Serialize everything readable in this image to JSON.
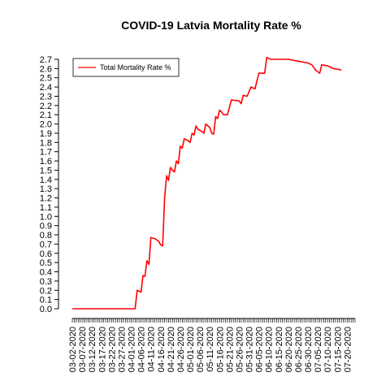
{
  "chart_data": {
    "type": "line",
    "title": "COVID-19 Latvia Mortality Rate %",
    "xlabel": "",
    "ylabel": "",
    "ylim": [
      0,
      2.7
    ],
    "yticks": [
      "0.0",
      "0.1",
      "0.2",
      "0.3",
      "0.4",
      "0.5",
      "0.6",
      "0.7",
      "0.8",
      "0.9",
      "1.0",
      "1.1",
      "1.2",
      "1.3",
      "1.4",
      "1.5",
      "1.6",
      "1.7",
      "1.8",
      "1.9",
      "2.0",
      "2.1",
      "2.2",
      "2.3",
      "2.4",
      "2.5",
      "2.6",
      "2.7"
    ],
    "xlim": [
      "03-02-2020",
      "07-24-2020"
    ],
    "xticks": [
      "03-02-2020",
      "03-07-2020",
      "03-12-2020",
      "03-17-2020",
      "03-22-2020",
      "03-27-2020",
      "04-01-2020",
      "04-06-2020",
      "04-11-2020",
      "04-16-2020",
      "04-21-2020",
      "04-26-2020",
      "05-01-2020",
      "05-06-2020",
      "05-11-2020",
      "05-16-2020",
      "05-21-2020",
      "05-26-2020",
      "05-31-2020",
      "06-05-2020",
      "06-10-2020",
      "06-15-2020",
      "06-20-2020",
      "06-25-2020",
      "06-30-2020",
      "07-05-2020",
      "07-10-2020",
      "07-15-2020",
      "07-20-2020"
    ],
    "legend": {
      "position": "top-left"
    },
    "grid": false,
    "series": [
      {
        "name": "Total Mortality Rate %",
        "color": "#ff0000",
        "points": [
          [
            "03-02-2020",
            0.0
          ],
          [
            "04-03-2020",
            0.0
          ],
          [
            "04-04-2020",
            0.2
          ],
          [
            "04-06-2020",
            0.18
          ],
          [
            "04-07-2020",
            0.36
          ],
          [
            "04-08-2020",
            0.35
          ],
          [
            "04-09-2020",
            0.52
          ],
          [
            "04-10-2020",
            0.48
          ],
          [
            "04-11-2020",
            0.77
          ],
          [
            "04-13-2020",
            0.76
          ],
          [
            "04-15-2020",
            0.73
          ],
          [
            "04-16-2020",
            0.69
          ],
          [
            "04-17-2020",
            0.68
          ],
          [
            "04-18-2020",
            1.2
          ],
          [
            "04-19-2020",
            1.44
          ],
          [
            "04-20-2020",
            1.39
          ],
          [
            "04-21-2020",
            1.53
          ],
          [
            "04-22-2020",
            1.5
          ],
          [
            "04-23-2020",
            1.48
          ],
          [
            "04-24-2020",
            1.6
          ],
          [
            "04-25-2020",
            1.57
          ],
          [
            "04-26-2020",
            1.76
          ],
          [
            "04-27-2020",
            1.74
          ],
          [
            "04-28-2020",
            1.84
          ],
          [
            "04-30-2020",
            1.82
          ],
          [
            "05-01-2020",
            1.8
          ],
          [
            "05-02-2020",
            1.9
          ],
          [
            "05-03-2020",
            1.88
          ],
          [
            "05-04-2020",
            1.98
          ],
          [
            "05-05-2020",
            1.94
          ],
          [
            "05-07-2020",
            1.92
          ],
          [
            "05-08-2020",
            1.9
          ],
          [
            "05-09-2020",
            2.0
          ],
          [
            "05-11-2020",
            1.96
          ],
          [
            "05-12-2020",
            1.9
          ],
          [
            "05-13-2020",
            1.89
          ],
          [
            "05-14-2020",
            2.08
          ],
          [
            "05-15-2020",
            2.06
          ],
          [
            "05-16-2020",
            2.15
          ],
          [
            "05-17-2020",
            2.13
          ],
          [
            "05-18-2020",
            2.1
          ],
          [
            "05-20-2020",
            2.1
          ],
          [
            "05-22-2020",
            2.26
          ],
          [
            "05-26-2020",
            2.25
          ],
          [
            "05-27-2020",
            2.22
          ],
          [
            "05-28-2020",
            2.31
          ],
          [
            "05-30-2020",
            2.3
          ],
          [
            "06-01-2020",
            2.4
          ],
          [
            "06-03-2020",
            2.38
          ],
          [
            "06-05-2020",
            2.55
          ],
          [
            "06-08-2020",
            2.55
          ],
          [
            "06-09-2020",
            2.72
          ],
          [
            "06-11-2020",
            2.7
          ],
          [
            "06-20-2020",
            2.7
          ],
          [
            "06-25-2020",
            2.68
          ],
          [
            "06-30-2020",
            2.66
          ],
          [
            "07-02-2020",
            2.64
          ],
          [
            "07-04-2020",
            2.58
          ],
          [
            "07-06-2020",
            2.55
          ],
          [
            "07-07-2020",
            2.64
          ],
          [
            "07-10-2020",
            2.63
          ],
          [
            "07-13-2020",
            2.6
          ],
          [
            "07-16-2020",
            2.59
          ],
          [
            "07-17-2020",
            2.58
          ]
        ]
      }
    ]
  }
}
